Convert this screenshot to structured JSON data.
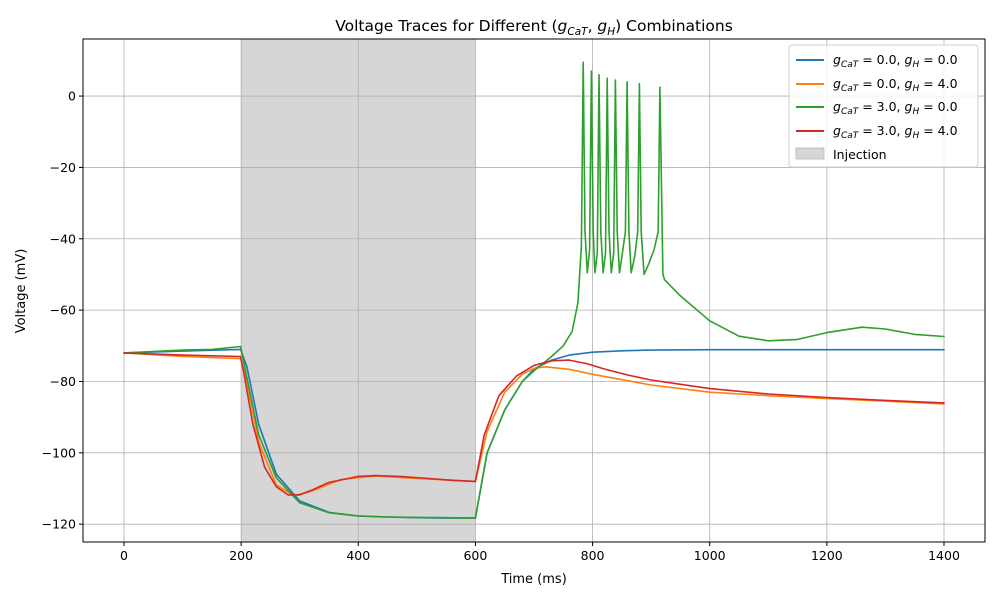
{
  "chart_data": {
    "type": "line",
    "title_parts": [
      "Voltage Traces for Different (",
      "g",
      "CaT",
      ", ",
      "g",
      "H",
      ") Combinations"
    ],
    "xlabel": "Time (ms)",
    "ylabel": "Voltage (mV)",
    "xlim": [
      -70,
      1470
    ],
    "ylim": [
      -125,
      16
    ],
    "xticks": [
      0,
      200,
      400,
      600,
      800,
      1000,
      1200,
      1400
    ],
    "yticks": [
      -120,
      -100,
      -80,
      -60,
      -40,
      -20,
      0
    ],
    "xtick_labels": [
      "0",
      "200",
      "400",
      "600",
      "800",
      "1000",
      "1200",
      "1400"
    ],
    "ytick_labels": [
      "−120",
      "−100",
      "−80",
      "−60",
      "−40",
      "−20",
      "0"
    ],
    "grid": true,
    "legend_position": "top-right",
    "shaded_region": {
      "label": "Injection",
      "x_start": 200,
      "x_end": 600,
      "color": "#d6d6d6"
    },
    "series": [
      {
        "gCaT": "0.0",
        "gH": "0.0",
        "color": "#1f77b4",
        "x": [
          0,
          100,
          199,
          210,
          230,
          260,
          300,
          350,
          400,
          450,
          500,
          550,
          600,
          620,
          650,
          680,
          700,
          730,
          760,
          800,
          850,
          900,
          1000,
          1200,
          1400
        ],
        "y": [
          -72,
          -71.5,
          -71,
          -76,
          -92,
          -106,
          -113.5,
          -116.7,
          -117.7,
          -118,
          -118.2,
          -118.3,
          -118.3,
          -100,
          -88,
          -80,
          -76.5,
          -74,
          -72.6,
          -71.8,
          -71.4,
          -71.2,
          -71.1,
          -71.1,
          -71.1
        ]
      },
      {
        "gCaT": "0.0",
        "gH": "4.0",
        "color": "#ff7f0e",
        "x": [
          0,
          100,
          199,
          210,
          230,
          260,
          290,
          320,
          370,
          430,
          500,
          550,
          600,
          620,
          650,
          680,
          700,
          720,
          760,
          800,
          900,
          1000,
          1100,
          1200,
          1300,
          1400
        ],
        "y": [
          -72,
          -73,
          -73.6,
          -80,
          -97,
          -109,
          -112,
          -110.8,
          -107.5,
          -106.5,
          -107.2,
          -107.6,
          -108,
          -94,
          -83,
          -78,
          -76.3,
          -75.9,
          -76.6,
          -78,
          -81,
          -83,
          -84,
          -84.8,
          -85.5,
          -86.3
        ]
      },
      {
        "gCaT": "3.0",
        "gH": "0.0",
        "color": "#2ca02c",
        "x": [
          0,
          100,
          150,
          199,
          210,
          230,
          260,
          300,
          350,
          400,
          450,
          500,
          550,
          600,
          620,
          650,
          680,
          700,
          730,
          750,
          765,
          775,
          781,
          784,
          787,
          791,
          795,
          798,
          801,
          804,
          808,
          811,
          814,
          818,
          822,
          825,
          828,
          832,
          836,
          839,
          842,
          846,
          850,
          856,
          859,
          862,
          866,
          872,
          877,
          880,
          883,
          888,
          896,
          905,
          912,
          915,
          920,
          923,
          950,
          1000,
          1050,
          1100,
          1150,
          1200,
          1260,
          1300,
          1350,
          1400
        ],
        "y": [
          -72,
          -71.2,
          -71,
          -70.2,
          -79,
          -95,
          -107,
          -114,
          -116.8,
          -117.7,
          -118,
          -118.1,
          -118.2,
          -118.3,
          -100,
          -88,
          -80,
          -77,
          -73,
          -70,
          -66,
          -58,
          -42,
          9.5,
          -38,
          -49.5,
          -43,
          7,
          -38,
          -49.5,
          -44,
          6,
          -38,
          -49.5,
          -44,
          5,
          -38,
          -49.5,
          -44,
          4.5,
          -38,
          -49.5,
          -45,
          -38,
          4,
          -38,
          -49.5,
          -45,
          -38,
          3.5,
          -38,
          -50,
          -47,
          -43,
          -38,
          2.5,
          -50,
          -51.5,
          -56,
          -63,
          -67.3,
          -68.6,
          -68.2,
          -66.3,
          -64.8,
          -65.3,
          -66.8,
          -67.4
        ]
      },
      {
        "gCaT": "3.0",
        "gH": "4.0",
        "color": "#d62728",
        "x": [
          0,
          100,
          199,
          205,
          220,
          240,
          260,
          280,
          300,
          320,
          350,
          400,
          430,
          470,
          520,
          560,
          600,
          615,
          640,
          670,
          700,
          730,
          760,
          790,
          820,
          860,
          900,
          1000,
          1100,
          1200,
          1300,
          1400
        ],
        "y": [
          -72,
          -72.6,
          -73,
          -78,
          -92,
          -104,
          -109.5,
          -111.8,
          -111.8,
          -110.5,
          -108.3,
          -106.6,
          -106.4,
          -106.6,
          -107.2,
          -107.7,
          -108,
          -95,
          -84,
          -78.5,
          -75.5,
          -74.2,
          -74,
          -75,
          -76.5,
          -78.2,
          -79.6,
          -82,
          -83.5,
          -84.5,
          -85.3,
          -86
        ]
      }
    ]
  },
  "legend": {
    "g_symbol": "g",
    "cat_sub": "CaT",
    "h_sub": "H",
    "eq": " = ",
    "sep": ", ",
    "injection_label": "Injection"
  }
}
